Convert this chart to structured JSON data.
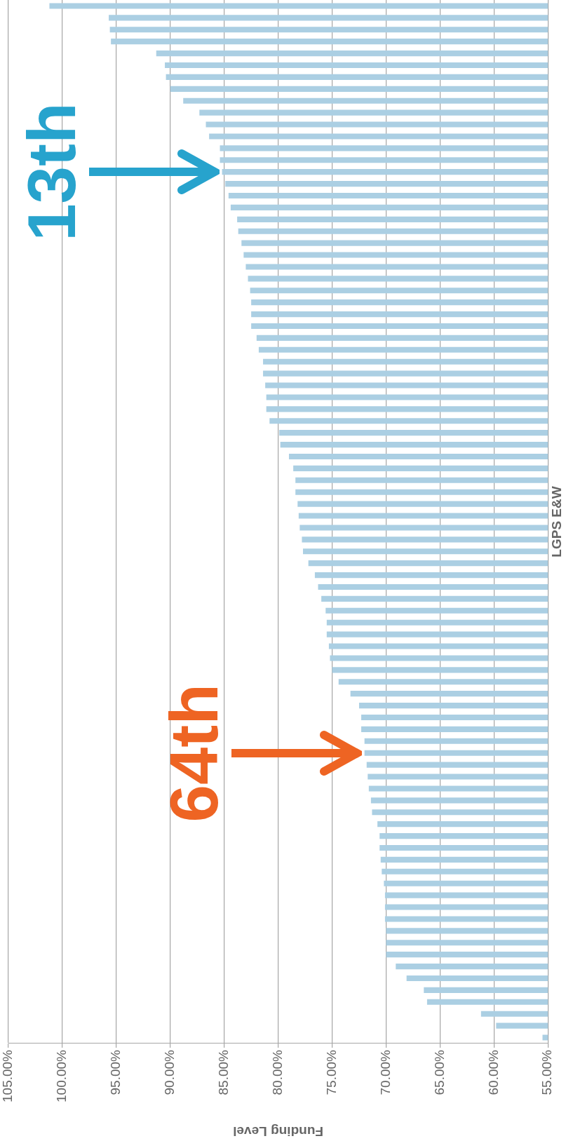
{
  "chart_data": {
    "type": "bar",
    "orientation": "horizontal",
    "xlabel": "Funding Level",
    "ylabel": "LGPS E&W",
    "color": "#abcfe3",
    "categories": [
      null,
      null,
      null,
      null,
      null,
      null,
      null,
      null,
      null,
      null,
      null,
      null,
      null,
      null,
      null,
      null,
      null,
      null,
      null,
      null,
      null,
      null,
      null,
      null,
      null,
      null,
      null,
      null,
      null,
      null,
      null,
      null,
      null,
      null,
      null,
      null,
      null,
      null,
      null,
      null,
      null,
      null,
      null,
      null,
      null,
      null,
      null,
      null,
      null,
      null,
      null,
      null,
      null,
      null,
      null,
      null,
      null,
      null,
      null,
      null,
      null,
      null,
      null,
      null,
      null,
      null,
      null,
      null,
      null,
      null,
      null,
      null,
      null,
      null,
      null,
      null,
      null,
      null,
      null,
      null,
      null,
      null,
      null,
      null,
      null,
      null,
      null,
      null
    ],
    "values": [
      101.2,
      95.7,
      95.6,
      95.5,
      91.3,
      90.5,
      90.4,
      90.0,
      88.8,
      87.3,
      86.7,
      86.4,
      85.4,
      85.4,
      85.2,
      84.9,
      84.6,
      84.4,
      83.8,
      83.7,
      83.4,
      83.2,
      83.0,
      82.8,
      82.6,
      82.5,
      82.5,
      82.5,
      82.0,
      81.8,
      81.4,
      81.4,
      81.2,
      81.1,
      81.1,
      80.8,
      79.9,
      79.8,
      79.0,
      78.6,
      78.4,
      78.4,
      78.2,
      78.1,
      78.0,
      77.8,
      77.7,
      77.2,
      76.6,
      76.3,
      76.0,
      75.6,
      75.5,
      75.5,
      75.3,
      75.2,
      75.0,
      74.4,
      73.3,
      72.5,
      72.3,
      72.3,
      72.0,
      72.0,
      71.8,
      71.7,
      71.6,
      71.4,
      71.3,
      70.8,
      70.6,
      70.6,
      70.5,
      70.4,
      70.2,
      70.1,
      70.1,
      70.1,
      70.0,
      70.0,
      70.0,
      69.1,
      68.1,
      66.5,
      66.2,
      61.2,
      59.8,
      55.5
    ],
    "xlim": [
      105,
      55
    ],
    "xticks": [
      {
        "value": 105,
        "label": "105.00%"
      },
      {
        "value": 100,
        "label": "100.00%"
      },
      {
        "value": 95,
        "label": "95.00%"
      },
      {
        "value": 90,
        "label": "90.00%"
      },
      {
        "value": 85,
        "label": "85.00%"
      },
      {
        "value": 80,
        "label": "80.00%"
      },
      {
        "value": 75,
        "label": "75.00%"
      },
      {
        "value": 70,
        "label": "70.00%"
      },
      {
        "value": 65,
        "label": "65.00%"
      },
      {
        "value": 60,
        "label": "60.00%"
      },
      {
        "value": 55,
        "label": "55.00%"
      }
    ],
    "grid": "x",
    "legend": false,
    "tick_labels": "x",
    "annotations": [
      {
        "text": "13th",
        "x": 85.2
      },
      {
        "text": "64th",
        "x": 72.0
      }
    ]
  }
}
